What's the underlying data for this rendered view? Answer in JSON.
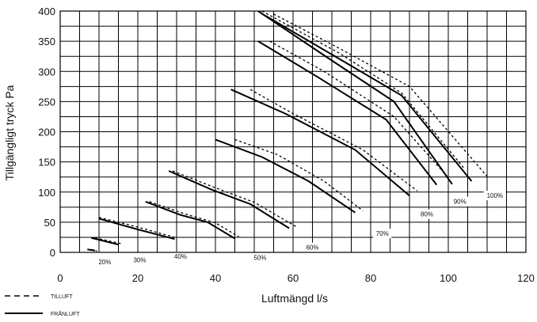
{
  "chart_data": {
    "type": "line",
    "xlabel": "Luftmängd l/s",
    "ylabel": "Tillgängligt tryck Pa",
    "xlim": [
      0,
      120
    ],
    "ylim": [
      0,
      400
    ],
    "xticks": [
      "0",
      "20",
      "40",
      "60",
      "80",
      "100",
      "120"
    ],
    "yticks": [
      "0",
      "50",
      "100",
      "150",
      "200",
      "250",
      "300",
      "350",
      "400"
    ],
    "grid": true,
    "legend": [
      {
        "label": "TILLUFT",
        "style": "dashed"
      },
      {
        "label": "FRÅNLUFT",
        "style": "solid"
      }
    ],
    "series": [
      {
        "speed": "20%",
        "label": "20%",
        "label_at": [
          11.5,
          -17
        ],
        "tilluft": [
          [
            8,
            5
          ],
          [
            9.5,
            2
          ]
        ],
        "franluft": [
          [
            7,
            5
          ],
          [
            9,
            3
          ]
        ]
      },
      {
        "speed": "20%",
        "label": "",
        "label_at": null,
        "tilluft": [
          [
            9,
            24
          ],
          [
            16,
            14
          ]
        ],
        "franluft": [
          [
            8,
            24
          ],
          [
            15,
            13
          ]
        ]
      },
      {
        "speed": "30%",
        "label": "30%",
        "label_at": [
          20.5,
          -14
        ],
        "tilluft": [
          [
            10,
            58
          ],
          [
            20,
            42
          ],
          [
            30,
            24
          ]
        ],
        "franluft": [
          [
            10,
            56
          ],
          [
            20,
            38
          ],
          [
            29.5,
            22
          ]
        ]
      },
      {
        "speed": "40%",
        "label": "40%",
        "label_at": [
          31,
          -8
        ],
        "tilluft": [
          [
            23,
            84
          ],
          [
            32,
            64
          ],
          [
            40,
            49
          ],
          [
            46,
            26
          ]
        ],
        "franluft": [
          [
            22,
            84
          ],
          [
            31,
            62
          ],
          [
            38,
            50
          ],
          [
            45,
            23
          ]
        ]
      },
      {
        "speed": "50%",
        "label": "50%",
        "label_at": [
          51.5,
          -10
        ],
        "tilluft": [
          [
            29,
            135
          ],
          [
            40,
            107
          ],
          [
            50,
            83
          ],
          [
            61,
            42
          ]
        ],
        "franluft": [
          [
            28,
            135
          ],
          [
            39,
            104
          ],
          [
            49,
            80
          ],
          [
            59,
            40
          ]
        ]
      },
      {
        "speed": "60%",
        "label": "60%",
        "label_at": [
          65,
          7
        ],
        "tilluft": [
          [
            45,
            187
          ],
          [
            56,
            162
          ],
          [
            68,
            118
          ],
          [
            78,
            69
          ]
        ],
        "franluft": [
          [
            40,
            187
          ],
          [
            52,
            158
          ],
          [
            64,
            118
          ],
          [
            76,
            66
          ]
        ]
      },
      {
        "speed": "70%",
        "label": "70%",
        "label_at": [
          83,
          30
        ],
        "tilluft": [
          [
            49,
            270
          ],
          [
            60,
            230
          ],
          [
            78,
            170
          ],
          [
            92,
            102
          ]
        ],
        "franluft": [
          [
            44,
            270
          ],
          [
            58,
            230
          ],
          [
            76,
            170
          ],
          [
            90,
            94
          ]
        ]
      },
      {
        "speed": "80%",
        "label": "80%",
        "label_at": [
          94.5,
          62
        ],
        "tilluft": [
          [
            54,
            350
          ],
          [
            68,
            300
          ],
          [
            86,
            225
          ],
          [
            100,
            124
          ]
        ],
        "franluft": [
          [
            51,
            350
          ],
          [
            66,
            292
          ],
          [
            84,
            220
          ],
          [
            97,
            112
          ]
        ]
      },
      {
        "speed": "90%",
        "label": "90%",
        "label_at": [
          103,
          83
        ],
        "tilluft": [
          [
            52,
            400
          ],
          [
            72,
            330
          ],
          [
            88,
            264
          ],
          [
            104,
            140
          ]
        ],
        "franluft": [
          [
            51,
            400
          ],
          [
            70,
            318
          ],
          [
            86,
            250
          ],
          [
            101,
            113
          ]
        ]
      },
      {
        "speed": "100%",
        "label": "100%",
        "label_at": [
          112,
          93
        ],
        "tilluft": [
          [
            55,
            395
          ],
          [
            72,
            338
          ],
          [
            90,
            275
          ],
          [
            110,
            126
          ]
        ],
        "franluft": [
          [
            53,
            392
          ],
          [
            70,
            328
          ],
          [
            88,
            260
          ],
          [
            106,
            118
          ]
        ]
      }
    ]
  }
}
